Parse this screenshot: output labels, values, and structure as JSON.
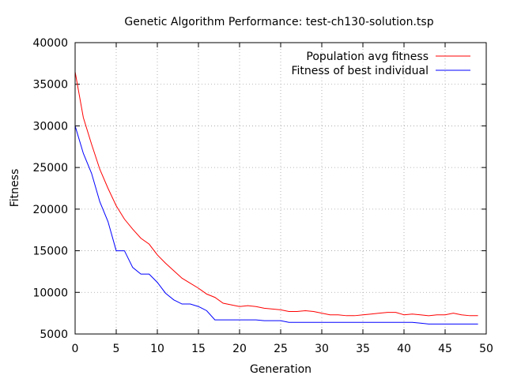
{
  "chart_data": {
    "type": "line",
    "title": "Genetic Algorithm Performance: test-ch130-solution.tsp",
    "xlabel": "Generation",
    "ylabel": "Fitness",
    "xlim": [
      0,
      50
    ],
    "ylim": [
      5000,
      40000
    ],
    "xticks": [
      "0",
      "5",
      "10",
      "15",
      "20",
      "25",
      "30",
      "35",
      "40",
      "45",
      "50"
    ],
    "yticks": [
      "5000",
      "10000",
      "15000",
      "20000",
      "25000",
      "30000",
      "35000",
      "40000"
    ],
    "grid": true,
    "legend_position": "top-right",
    "x": [
      0,
      1,
      2,
      3,
      4,
      5,
      6,
      7,
      8,
      9,
      10,
      11,
      12,
      13,
      14,
      15,
      16,
      17,
      18,
      19,
      20,
      21,
      22,
      23,
      24,
      25,
      26,
      27,
      28,
      29,
      30,
      31,
      32,
      33,
      34,
      35,
      36,
      37,
      38,
      39,
      40,
      41,
      42,
      43,
      44,
      45,
      46,
      47,
      48,
      49
    ],
    "series": [
      {
        "name": "Population avg fitness",
        "color": "#ff0000",
        "values": [
          36500,
          31000,
          27800,
          24800,
          22500,
          20400,
          18800,
          17600,
          16500,
          15800,
          14500,
          13500,
          12600,
          11700,
          11100,
          10500,
          9800,
          9400,
          8700,
          8500,
          8300,
          8400,
          8300,
          8100,
          8000,
          7900,
          7700,
          7700,
          7800,
          7700,
          7500,
          7300,
          7300,
          7200,
          7200,
          7300,
          7400,
          7500,
          7600,
          7600,
          7300,
          7400,
          7300,
          7200,
          7300,
          7300,
          7500,
          7300,
          7200,
          7200
        ]
      },
      {
        "name": "Fitness of best individual",
        "color": "#0000ff",
        "values": [
          30000,
          26700,
          24300,
          20900,
          18500,
          15000,
          15000,
          13000,
          12200,
          12200,
          11200,
          9900,
          9100,
          8600,
          8600,
          8300,
          7800,
          6700,
          6700,
          6700,
          6700,
          6700,
          6700,
          6600,
          6600,
          6600,
          6400,
          6400,
          6400,
          6400,
          6400,
          6400,
          6400,
          6400,
          6400,
          6400,
          6400,
          6400,
          6400,
          6400,
          6400,
          6400,
          6300,
          6200,
          6200,
          6200,
          6200,
          6200,
          6200,
          6200
        ]
      }
    ]
  }
}
